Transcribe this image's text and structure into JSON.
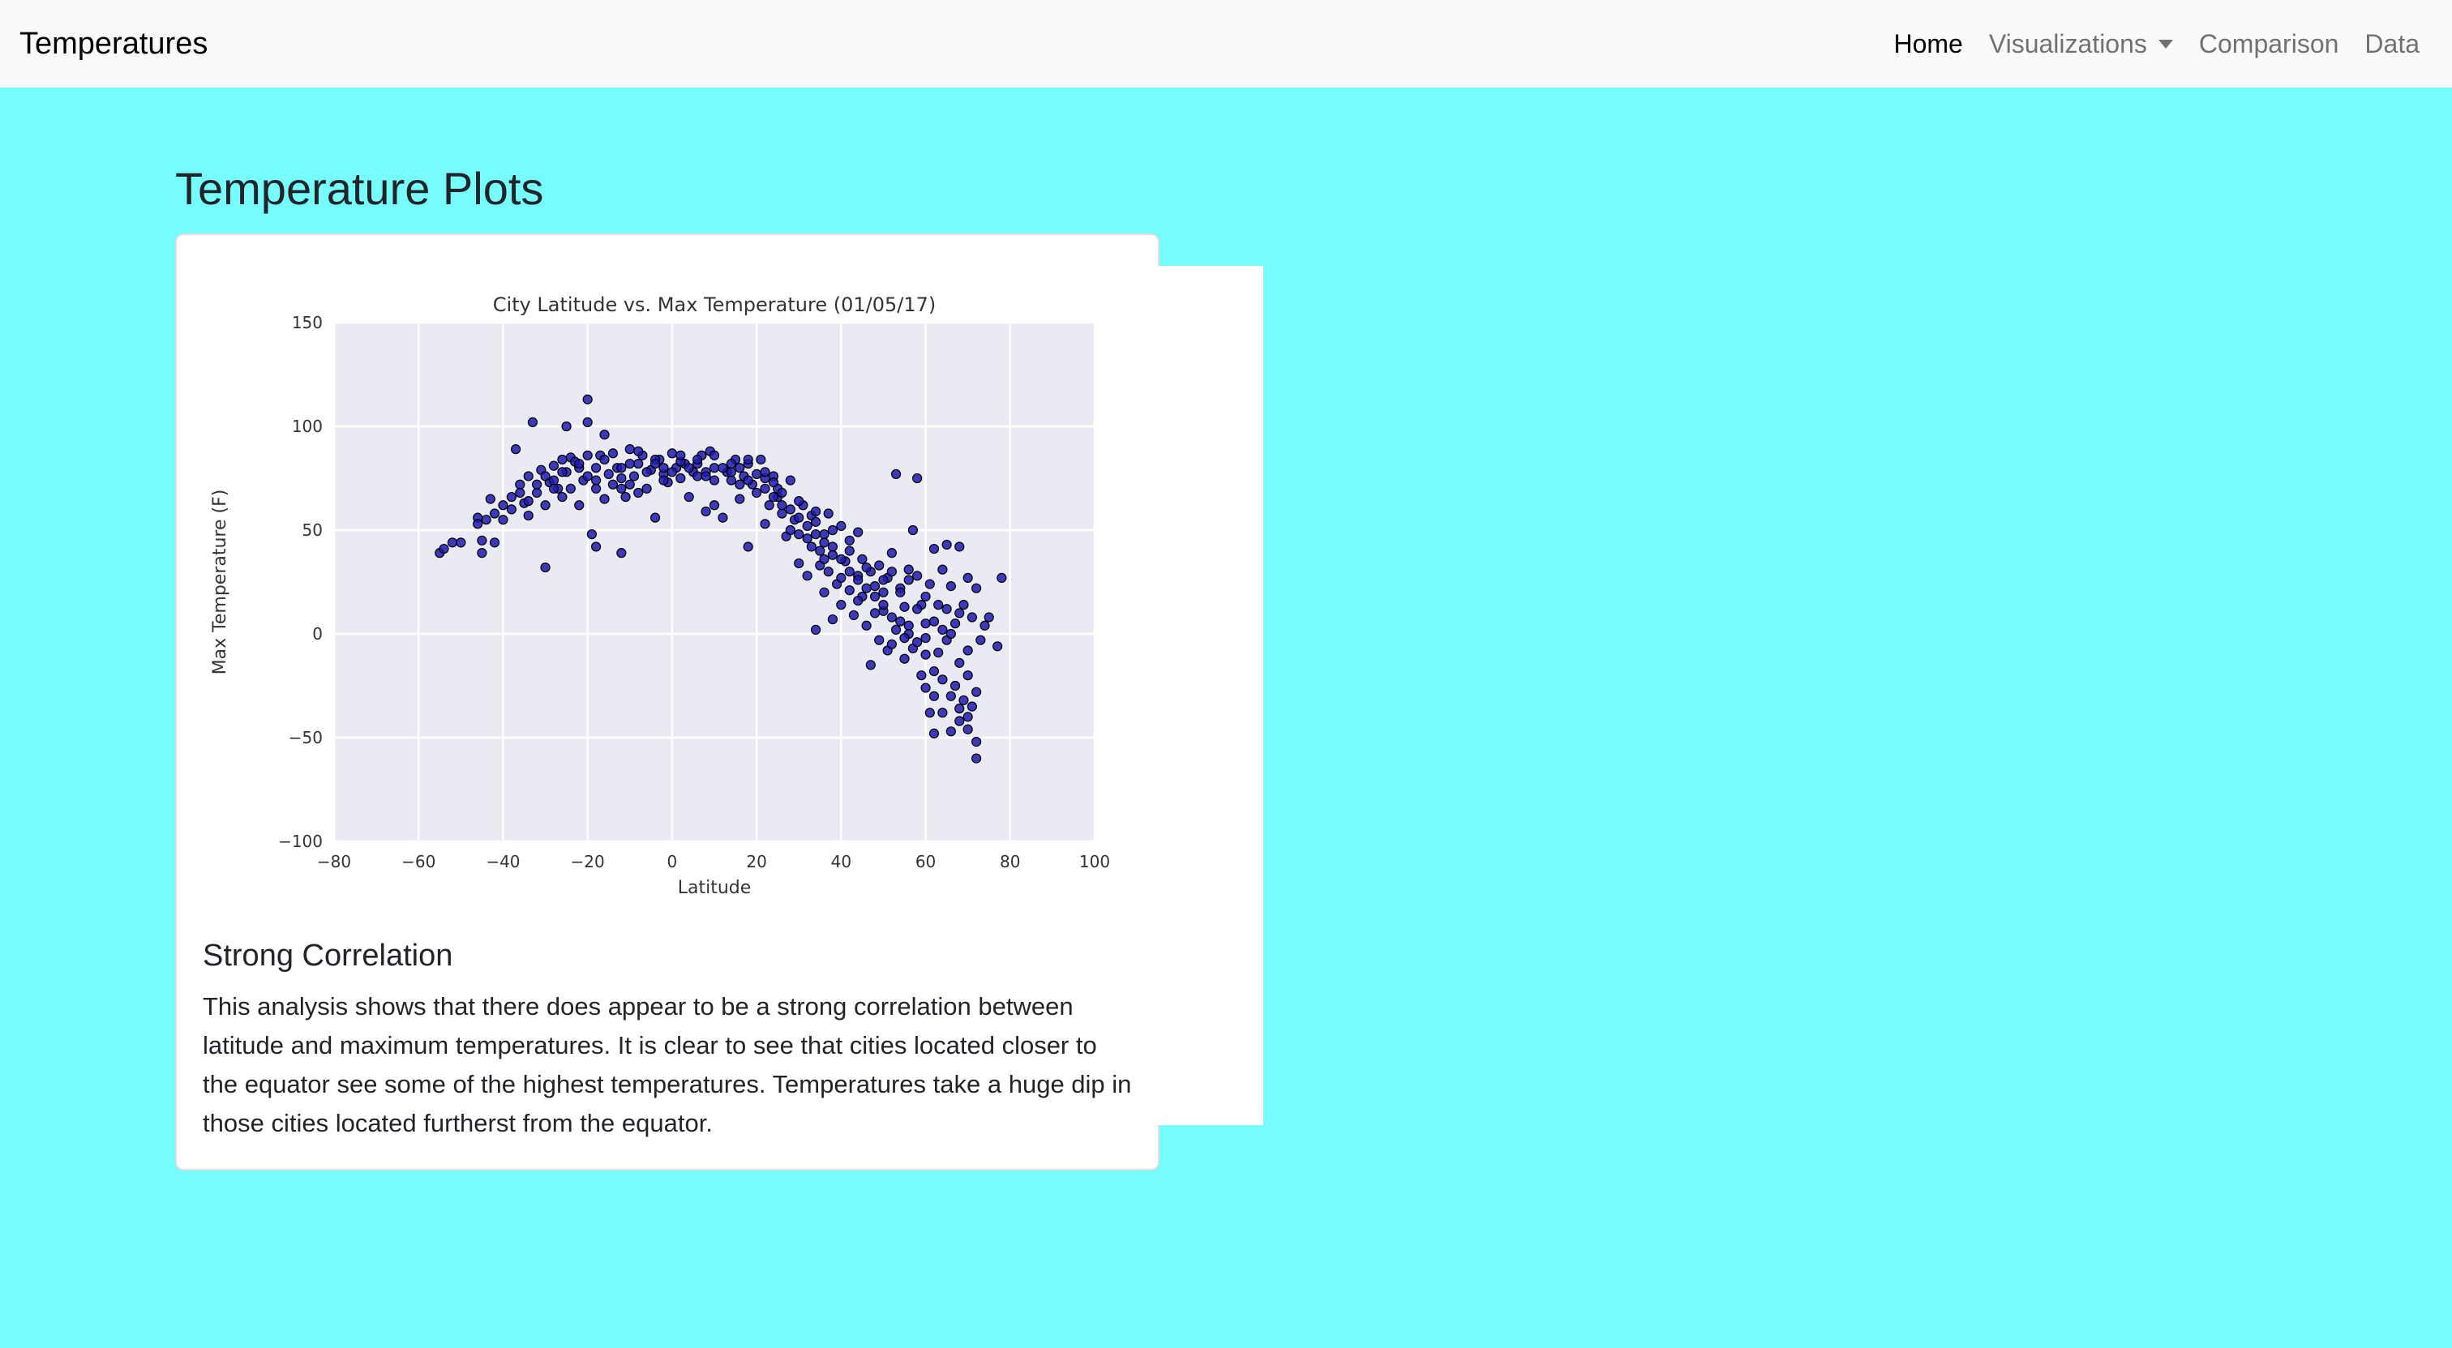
{
  "navbar": {
    "brand": "Temperatures",
    "links": [
      {
        "label": "Home"
      },
      {
        "label": "Visualizations"
      },
      {
        "label": "Comparison"
      },
      {
        "label": "Data"
      }
    ]
  },
  "page": {
    "title": "Temperature Plots"
  },
  "card": {
    "title": "Strong Correlation",
    "text": "This analysis shows that there does appear to be a strong correlation between latitude and maximum temperatures. It is clear to see that cities located closer to the equator see some of the highest temperatures. Temperatures take a huge dip in those cities located furtherst from the equator."
  },
  "colors": {
    "background": "#76fcfd",
    "navbar": "#f8f9fa",
    "marker": "#1e1bb0",
    "plot_bg": "#eaeaf2"
  },
  "chart_data": {
    "type": "scatter",
    "title": "City Latitude vs. Max Temperature (01/05/17)",
    "xlabel": "Latitude",
    "ylabel": "Max Temperature (F)",
    "xlim": [
      -80,
      100
    ],
    "ylim": [
      -100,
      150
    ],
    "xticks": [
      "−80",
      "−60",
      "−40",
      "−20",
      "0",
      "20",
      "40",
      "60",
      "80",
      "100"
    ],
    "yticks": [
      "150",
      "100",
      "50",
      "0",
      "−50",
      "−100"
    ],
    "grid": true,
    "points": [
      [
        -55,
        39
      ],
      [
        -54,
        41
      ],
      [
        -52,
        44
      ],
      [
        -46,
        56
      ],
      [
        -46,
        53
      ],
      [
        -45,
        39
      ],
      [
        -45,
        45
      ],
      [
        -43,
        65
      ],
      [
        -42,
        44
      ],
      [
        -40,
        55
      ],
      [
        -38,
        66
      ],
      [
        -38,
        60
      ],
      [
        -37,
        89
      ],
      [
        -36,
        72
      ],
      [
        -35,
        63
      ],
      [
        -34,
        57
      ],
      [
        -34,
        76
      ],
      [
        -33,
        102
      ],
      [
        -32,
        68
      ],
      [
        -31,
        79
      ],
      [
        -30,
        62
      ],
      [
        -30,
        32
      ],
      [
        -29,
        73
      ],
      [
        -28,
        81
      ],
      [
        -27,
        70
      ],
      [
        -26,
        66
      ],
      [
        -25,
        100
      ],
      [
        -25,
        78
      ],
      [
        -24,
        85
      ],
      [
        -23,
        83
      ],
      [
        -22,
        62
      ],
      [
        -21,
        74
      ],
      [
        -20,
        113
      ],
      [
        -20,
        102
      ],
      [
        -19,
        48
      ],
      [
        -18,
        42
      ],
      [
        -18,
        70
      ],
      [
        -17,
        86
      ],
      [
        -16,
        96
      ],
      [
        -16,
        65
      ],
      [
        -15,
        77
      ],
      [
        -14,
        87
      ],
      [
        -13,
        80
      ],
      [
        -12,
        39
      ],
      [
        -12,
        70
      ],
      [
        -11,
        66
      ],
      [
        -10,
        89
      ],
      [
        -9,
        76
      ],
      [
        -8,
        82
      ],
      [
        -8,
        68
      ],
      [
        -7,
        86
      ],
      [
        -6,
        70
      ],
      [
        -5,
        79
      ],
      [
        -4,
        56
      ],
      [
        -3,
        84
      ],
      [
        -2,
        77
      ],
      [
        -1,
        73
      ],
      [
        0,
        87
      ],
      [
        1,
        80
      ],
      [
        2,
        75
      ],
      [
        3,
        82
      ],
      [
        4,
        66
      ],
      [
        5,
        78
      ],
      [
        6,
        76
      ],
      [
        7,
        86
      ],
      [
        8,
        59
      ],
      [
        9,
        88
      ],
      [
        10,
        62
      ],
      [
        10,
        80
      ],
      [
        12,
        56
      ],
      [
        13,
        78
      ],
      [
        14,
        74
      ],
      [
        15,
        84
      ],
      [
        16,
        65
      ],
      [
        17,
        76
      ],
      [
        18,
        42
      ],
      [
        18,
        82
      ],
      [
        19,
        72
      ],
      [
        20,
        68
      ],
      [
        21,
        84
      ],
      [
        22,
        75
      ],
      [
        22,
        53
      ],
      [
        23,
        62
      ],
      [
        24,
        76
      ],
      [
        25,
        66
      ],
      [
        25,
        70
      ],
      [
        26,
        58
      ],
      [
        27,
        47
      ],
      [
        28,
        74
      ],
      [
        29,
        55
      ],
      [
        30,
        34
      ],
      [
        31,
        62
      ],
      [
        32,
        46
      ],
      [
        32,
        28
      ],
      [
        33,
        57
      ],
      [
        33,
        42
      ],
      [
        34,
        59
      ],
      [
        34,
        2
      ],
      [
        35,
        40
      ],
      [
        36,
        20
      ],
      [
        36,
        48
      ],
      [
        37,
        30
      ],
      [
        37,
        58
      ],
      [
        38,
        7
      ],
      [
        38,
        38
      ],
      [
        39,
        24
      ],
      [
        40,
        52
      ],
      [
        40,
        14
      ],
      [
        41,
        35
      ],
      [
        42,
        21
      ],
      [
        42,
        45
      ],
      [
        43,
        9
      ],
      [
        44,
        28
      ],
      [
        44,
        49
      ],
      [
        45,
        36
      ],
      [
        46,
        4
      ],
      [
        47,
        30
      ],
      [
        47,
        -15
      ],
      [
        48,
        23
      ],
      [
        49,
        33
      ],
      [
        49,
        -3
      ],
      [
        50,
        11
      ],
      [
        51,
        27
      ],
      [
        51,
        -8
      ],
      [
        52,
        -5
      ],
      [
        52,
        39
      ],
      [
        53,
        2
      ],
      [
        53,
        77
      ],
      [
        54,
        22
      ],
      [
        55,
        13
      ],
      [
        55,
        -12
      ],
      [
        56,
        31
      ],
      [
        56,
        4
      ],
      [
        57,
        50
      ],
      [
        57,
        -7
      ],
      [
        58,
        75
      ],
      [
        58,
        28
      ],
      [
        59,
        14
      ],
      [
        59,
        -20
      ],
      [
        60,
        -26
      ],
      [
        60,
        5
      ],
      [
        61,
        24
      ],
      [
        61,
        -38
      ],
      [
        62,
        -48
      ],
      [
        62,
        41
      ],
      [
        63,
        14
      ],
      [
        63,
        -9
      ],
      [
        64,
        31
      ],
      [
        64,
        -38
      ],
      [
        65,
        43
      ],
      [
        65,
        -3
      ],
      [
        66,
        23
      ],
      [
        66,
        -47
      ],
      [
        67,
        5
      ],
      [
        67,
        -25
      ],
      [
        68,
        42
      ],
      [
        68,
        -42
      ],
      [
        69,
        -32
      ],
      [
        69,
        14
      ],
      [
        70,
        -46
      ],
      [
        70,
        27
      ],
      [
        70,
        -20
      ],
      [
        71,
        -35
      ],
      [
        71,
        8
      ],
      [
        72,
        -52
      ],
      [
        72,
        -60
      ],
      [
        72,
        22
      ],
      [
        73,
        -3
      ],
      [
        74,
        4
      ],
      [
        75,
        8
      ],
      [
        77,
        -6
      ],
      [
        78,
        27
      ],
      [
        -28,
        74
      ],
      [
        -26,
        78
      ],
      [
        -24,
        70
      ],
      [
        -22,
        80
      ],
      [
        -20,
        76
      ],
      [
        -18,
        80
      ],
      [
        -14,
        72
      ],
      [
        -12,
        75
      ],
      [
        -10,
        82
      ],
      [
        -6,
        78
      ],
      [
        -4,
        84
      ],
      [
        -2,
        80
      ],
      [
        0,
        78
      ],
      [
        2,
        83
      ],
      [
        4,
        80
      ],
      [
        6,
        82
      ],
      [
        8,
        78
      ],
      [
        10,
        74
      ],
      [
        12,
        80
      ],
      [
        14,
        78
      ],
      [
        16,
        80
      ],
      [
        18,
        74
      ],
      [
        20,
        77
      ],
      [
        22,
        70
      ],
      [
        24,
        73
      ],
      [
        26,
        62
      ],
      [
        28,
        60
      ],
      [
        30,
        56
      ],
      [
        32,
        52
      ],
      [
        34,
        48
      ],
      [
        36,
        44
      ],
      [
        38,
        42
      ],
      [
        40,
        36
      ],
      [
        42,
        30
      ],
      [
        44,
        26
      ],
      [
        46,
        22
      ],
      [
        48,
        18
      ],
      [
        50,
        14
      ],
      [
        52,
        8
      ],
      [
        54,
        6
      ],
      [
        56,
        0
      ],
      [
        58,
        -4
      ],
      [
        60,
        -10
      ],
      [
        62,
        -18
      ],
      [
        64,
        -22
      ],
      [
        66,
        -30
      ],
      [
        68,
        -36
      ],
      [
        70,
        -40
      ],
      [
        -44,
        55
      ],
      [
        -40,
        62
      ],
      [
        -36,
        68
      ],
      [
        -32,
        72
      ],
      [
        -30,
        76
      ],
      [
        -26,
        84
      ],
      [
        -22,
        82
      ],
      [
        -20,
        86
      ],
      [
        -16,
        84
      ],
      [
        -12,
        80
      ],
      [
        -8,
        88
      ],
      [
        -4,
        82
      ],
      [
        2,
        86
      ],
      [
        6,
        84
      ],
      [
        10,
        86
      ],
      [
        14,
        82
      ],
      [
        18,
        84
      ],
      [
        22,
        78
      ],
      [
        26,
        68
      ],
      [
        30,
        64
      ],
      [
        34,
        54
      ],
      [
        38,
        50
      ],
      [
        42,
        40
      ],
      [
        46,
        32
      ],
      [
        50,
        26
      ],
      [
        54,
        20
      ],
      [
        58,
        12
      ],
      [
        62,
        6
      ],
      [
        66,
        0
      ],
      [
        70,
        -8
      ],
      [
        30,
        48
      ],
      [
        35,
        33
      ],
      [
        40,
        27
      ],
      [
        45,
        18
      ],
      [
        50,
        20
      ],
      [
        55,
        -2
      ],
      [
        60,
        18
      ],
      [
        65,
        12
      ],
      [
        68,
        -14
      ],
      [
        72,
        -28
      ],
      [
        -50,
        44
      ],
      [
        -42,
        58
      ],
      [
        -34,
        64
      ],
      [
        -28,
        70
      ],
      [
        -18,
        74
      ],
      [
        -10,
        72
      ],
      [
        -2,
        74
      ],
      [
        8,
        76
      ],
      [
        16,
        72
      ],
      [
        24,
        66
      ],
      [
        28,
        50
      ],
      [
        36,
        36
      ],
      [
        44,
        16
      ],
      [
        48,
        10
      ],
      [
        52,
        30
      ],
      [
        56,
        26
      ],
      [
        60,
        -2
      ],
      [
        64,
        2
      ],
      [
        68,
        10
      ],
      [
        62,
        -30
      ]
    ]
  }
}
